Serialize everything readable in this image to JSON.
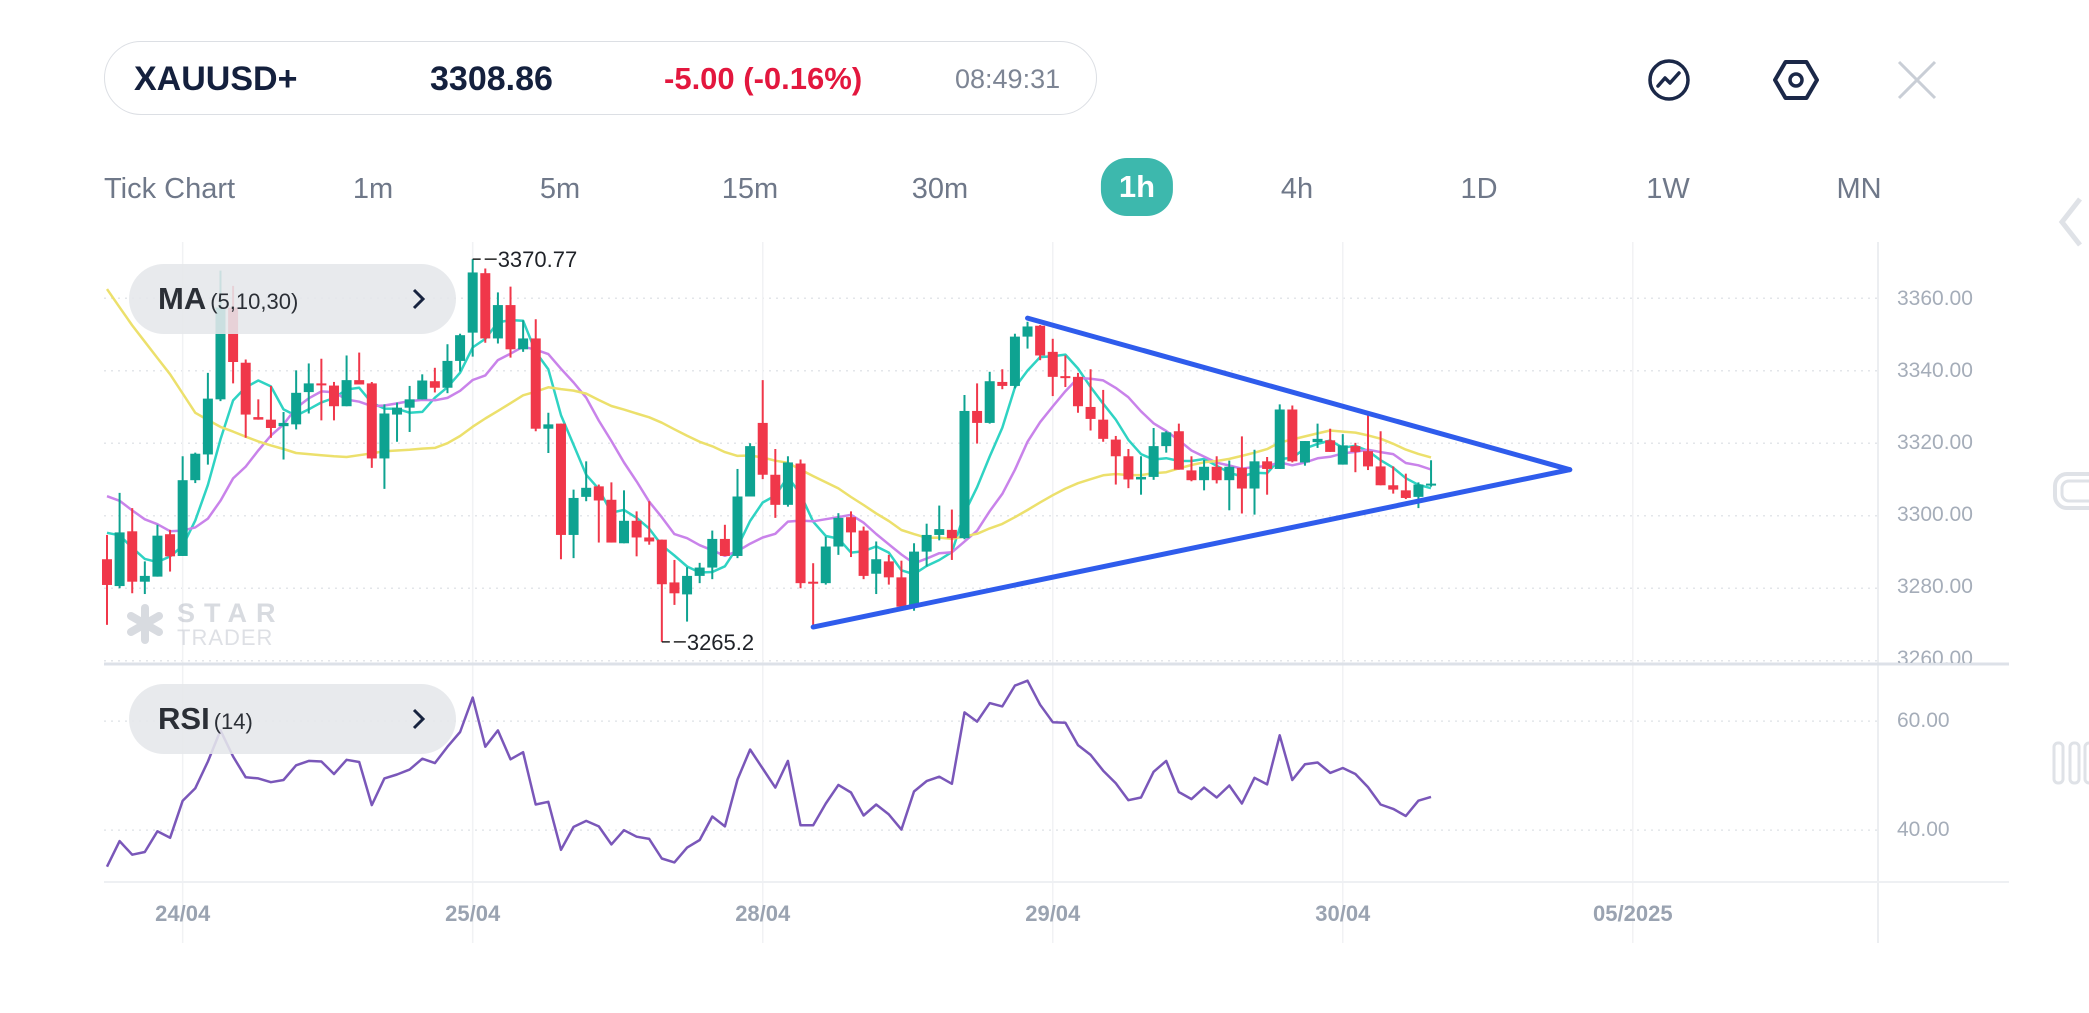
{
  "header": {
    "symbol": "XAUUSD+",
    "price": "3308.86",
    "change": "-5.00 (-0.16%)",
    "time": "08:49:31",
    "icons": [
      "trend-chart-icon",
      "settings-hexagon-icon",
      "close-icon"
    ]
  },
  "timeframes": [
    {
      "label": "Tick Chart"
    },
    {
      "label": "1m"
    },
    {
      "label": "5m"
    },
    {
      "label": "15m"
    },
    {
      "label": "30m"
    },
    {
      "label": "1h",
      "active": true
    },
    {
      "label": "4h"
    },
    {
      "label": "1D"
    },
    {
      "label": "1W"
    },
    {
      "label": "MN"
    }
  ],
  "indicators": {
    "ma": {
      "name": "MA",
      "params": "(5,10,30)"
    },
    "rsi": {
      "name": "RSI",
      "params": "(14)"
    }
  },
  "watermark": {
    "line1": "STAR",
    "line2": "TRADER"
  },
  "colors": {
    "up": "#0ea391",
    "down": "#f0374a",
    "ma5": "#2fd3c3",
    "ma10": "#c983ea",
    "ma30": "#ece06c",
    "trendline": "#2f5cec",
    "rsi": "#7a57b9",
    "negative_change": "#e3173e",
    "active_tab": "#3db8ad"
  },
  "chart_data": [
    {
      "type": "candlestick",
      "timeframe": "1h",
      "y_ticks": [
        "3360.00",
        "3340.00",
        "3320.00",
        "3300.00",
        "3280.00",
        "3260.00"
      ],
      "y_tick_values": [
        3360,
        3340,
        3320,
        3300,
        3280,
        3260
      ],
      "ylim": [
        3259.1,
        3375.5
      ],
      "x_ticks": [
        {
          "label": "24/04",
          "bar": 7
        },
        {
          "label": "25/04",
          "bar": 30
        },
        {
          "label": "28/04",
          "bar": 53
        },
        {
          "label": "29/04",
          "bar": 76
        },
        {
          "label": "30/04",
          "bar": 99
        },
        {
          "label": "05/2025",
          "bar": 122
        }
      ],
      "grid": true,
      "annotations": [
        {
          "label": "3370.77",
          "bar": 30,
          "value": 3370.77,
          "kind": "high"
        },
        {
          "label": "3265.2",
          "bar": 45,
          "value": 3265.2,
          "kind": "low"
        }
      ],
      "ohlc": [
        [
          3288.0,
          3294.7,
          3269.9,
          3280.9
        ],
        [
          3280.6,
          3306.3,
          3280.0,
          3295.4
        ],
        [
          3295.7,
          3302.1,
          3278.6,
          3281.8
        ],
        [
          3281.8,
          3287.4,
          3278.4,
          3283.4
        ],
        [
          3283.2,
          3297.5,
          3283.2,
          3294.5
        ],
        [
          3294.9,
          3296.1,
          3284.6,
          3288.8
        ],
        [
          3288.9,
          3316.4,
          3288.9,
          3309.8
        ],
        [
          3309.8,
          3317.4,
          3309.0,
          3317.1
        ],
        [
          3316.9,
          3339.4,
          3314.1,
          3332.3
        ],
        [
          3332.1,
          3367.6,
          3331.6,
          3357.4
        ],
        [
          3357.4,
          3363.4,
          3336.5,
          3342.4
        ],
        [
          3342.2,
          3343.1,
          3321.5,
          3327.9
        ],
        [
          3327.2,
          3332.1,
          3326.5,
          3326.5
        ],
        [
          3326.5,
          3335.8,
          3321.5,
          3324.2
        ],
        [
          3324.7,
          3328.6,
          3315.5,
          3325.6
        ],
        [
          3325.2,
          3340.1,
          3323.8,
          3333.9
        ],
        [
          3334.1,
          3342.0,
          3328.2,
          3336.5
        ],
        [
          3336.5,
          3343.3,
          3326.3,
          3336.1
        ],
        [
          3335.9,
          3336.9,
          3326.3,
          3330.2
        ],
        [
          3330.2,
          3344.2,
          3330.2,
          3337.4
        ],
        [
          3337.4,
          3345.0,
          3336.2,
          3336.2
        ],
        [
          3336.5,
          3336.9,
          3313.2,
          3315.8
        ],
        [
          3315.8,
          3330.7,
          3307.4,
          3328.2
        ],
        [
          3327.9,
          3331.2,
          3320.4,
          3329.8
        ],
        [
          3329.8,
          3335.8,
          3323.1,
          3332.1
        ],
        [
          3332.1,
          3339.0,
          3332.1,
          3337.3
        ],
        [
          3337.1,
          3340.8,
          3334.0,
          3335.3
        ],
        [
          3335.3,
          3347.3,
          3333.8,
          3342.7
        ],
        [
          3342.7,
          3350.2,
          3339.8,
          3349.8
        ],
        [
          3350.5,
          3370.77,
          3343.9,
          3367.1
        ],
        [
          3366.9,
          3368.2,
          3347.7,
          3348.9
        ],
        [
          3348.9,
          3361.6,
          3347.5,
          3358.1
        ],
        [
          3358.1,
          3363.2,
          3343.6,
          3345.9
        ],
        [
          3345.9,
          3353.9,
          3345.2,
          3348.9
        ],
        [
          3348.9,
          3354.2,
          3323.3,
          3324.0
        ],
        [
          3324.0,
          3328.4,
          3317.3,
          3325.2
        ],
        [
          3325.4,
          3325.4,
          3288.0,
          3294.7
        ],
        [
          3294.7,
          3307.2,
          3288.3,
          3304.9
        ],
        [
          3305.2,
          3315.0,
          3304.0,
          3307.7
        ],
        [
          3308.1,
          3308.6,
          3292.6,
          3304.2
        ],
        [
          3304.4,
          3309.2,
          3292.6,
          3292.6
        ],
        [
          3292.4,
          3307.0,
          3292.4,
          3298.6
        ],
        [
          3298.6,
          3301.2,
          3288.8,
          3294.0
        ],
        [
          3294.0,
          3304.0,
          3292.0,
          3292.9
        ],
        [
          3293.4,
          3293.4,
          3265.2,
          3281.1
        ],
        [
          3281.6,
          3287.8,
          3275.4,
          3278.6
        ],
        [
          3278.3,
          3285.8,
          3270.8,
          3283.4
        ],
        [
          3283.4,
          3287.0,
          3281.4,
          3285.7
        ],
        [
          3285.7,
          3295.9,
          3282.5,
          3293.6
        ],
        [
          3293.6,
          3297.5,
          3288.9,
          3288.9
        ],
        [
          3288.9,
          3312.9,
          3288.3,
          3305.3
        ],
        [
          3305.3,
          3320.0,
          3305.3,
          3319.2
        ],
        [
          3325.6,
          3337.4,
          3310.1,
          3311.3
        ],
        [
          3311.3,
          3318.4,
          3299.4,
          3303.0
        ],
        [
          3303.0,
          3316.4,
          3302.5,
          3314.7
        ],
        [
          3314.4,
          3315.5,
          3280.0,
          3281.4
        ],
        [
          3281.8,
          3286.9,
          3269.4,
          3281.4
        ],
        [
          3281.4,
          3294.2,
          3281.0,
          3291.5
        ],
        [
          3291.5,
          3300.7,
          3289.2,
          3299.4
        ],
        [
          3299.6,
          3301.2,
          3288.6,
          3295.4
        ],
        [
          3295.9,
          3297.0,
          3282.5,
          3283.4
        ],
        [
          3284.0,
          3292.9,
          3278.4,
          3288.0
        ],
        [
          3287.4,
          3289.2,
          3281.0,
          3283.0
        ],
        [
          3283.0,
          3287.6,
          3274.9,
          3274.9
        ],
        [
          3274.9,
          3292.4,
          3273.8,
          3290.1
        ],
        [
          3290.1,
          3297.8,
          3286.0,
          3294.7
        ],
        [
          3294.7,
          3302.8,
          3293.2,
          3296.3
        ],
        [
          3296.1,
          3301.7,
          3287.8,
          3293.8
        ],
        [
          3293.8,
          3333.3,
          3293.5,
          3328.9
        ],
        [
          3328.9,
          3336.5,
          3319.9,
          3325.6
        ],
        [
          3325.6,
          3339.7,
          3325.4,
          3337.1
        ],
        [
          3336.9,
          3340.4,
          3334.9,
          3335.8
        ],
        [
          3335.8,
          3350.2,
          3335.1,
          3349.4
        ],
        [
          3349.4,
          3353.5,
          3346.1,
          3352.2
        ],
        [
          3352.4,
          3352.6,
          3342.9,
          3344.2
        ],
        [
          3345.2,
          3348.8,
          3333.0,
          3338.3
        ],
        [
          3338.5,
          3344.2,
          3335.5,
          3338.1
        ],
        [
          3338.3,
          3339.4,
          3328.4,
          3330.2
        ],
        [
          3330.0,
          3340.4,
          3323.5,
          3326.7
        ],
        [
          3326.5,
          3334.7,
          3320.4,
          3321.2
        ],
        [
          3321.0,
          3322.0,
          3308.6,
          3316.4
        ],
        [
          3316.4,
          3318.4,
          3307.6,
          3310.0
        ],
        [
          3310.0,
          3316.4,
          3305.8,
          3310.7
        ],
        [
          3310.7,
          3324.2,
          3309.9,
          3319.2
        ],
        [
          3319.2,
          3323.3,
          3317.4,
          3323.0
        ],
        [
          3323.3,
          3325.4,
          3312.7,
          3312.7
        ],
        [
          3312.5,
          3316.4,
          3309.5,
          3309.8
        ],
        [
          3309.8,
          3315.4,
          3307.0,
          3313.5
        ],
        [
          3313.5,
          3316.4,
          3308.9,
          3309.8
        ],
        [
          3309.8,
          3315.2,
          3301.5,
          3313.5
        ],
        [
          3313.2,
          3321.9,
          3300.6,
          3307.5
        ],
        [
          3307.5,
          3318.2,
          3300.3,
          3315.0
        ],
        [
          3315.0,
          3316.2,
          3305.8,
          3312.9
        ],
        [
          3312.9,
          3330.7,
          3312.9,
          3329.3
        ],
        [
          3329.3,
          3330.4,
          3314.7,
          3315.0
        ],
        [
          3314.7,
          3320.6,
          3313.8,
          3320.6
        ],
        [
          3320.3,
          3325.4,
          3318.7,
          3321.2
        ],
        [
          3320.8,
          3324.0,
          3317.6,
          3317.6
        ],
        [
          3314.1,
          3322.5,
          3314.1,
          3319.4
        ],
        [
          3319.2,
          3320.1,
          3312.0,
          3317.6
        ],
        [
          3317.8,
          3328.6,
          3312.6,
          3313.6
        ],
        [
          3313.6,
          3323.3,
          3308.4,
          3308.4
        ],
        [
          3308.4,
          3313.6,
          3306.1,
          3307.2
        ],
        [
          3307.0,
          3311.6,
          3304.6,
          3304.9
        ],
        [
          3305.2,
          3309.2,
          3302.1,
          3308.6
        ],
        [
          3308.6,
          3315.3,
          3308.0,
          3308.86
        ]
      ],
      "moving_averages": [
        {
          "period": 5,
          "start_value": 3298.9
        },
        {
          "period": 10,
          "start_value": 3308.1
        },
        {
          "period": 30,
          "leading_values": [
            3362.5,
            3357.5,
            3352.5,
            3348,
            3343.5,
            3339,
            3333.7,
            3328.4,
            3326.4,
            3324.5,
            3323.2,
            3321.8,
            3320.5,
            3319.4,
            3318.4,
            3317.3,
            3317,
            3316.7,
            3316.4,
            3316.2,
            3316.7,
            3317.2,
            3317.8,
            3318,
            3318.2,
            3318.5,
            3318.7,
            3320,
            3322
          ]
        }
      ],
      "trendlines": [
        {
          "from": {
            "bar": 74,
            "value": 3354.5
          },
          "to": {
            "bar": 117,
            "value": 3312.7
          }
        },
        {
          "from": {
            "bar": 57,
            "value": 3269.3
          },
          "to": {
            "bar": 117,
            "value": 3312.7
          }
        }
      ]
    },
    {
      "type": "line",
      "name": "RSI (14)",
      "y_ticks": [
        "60.00",
        "40.00"
      ],
      "y_tick_values": [
        60,
        40
      ],
      "ylim": [
        30.5,
        70.1
      ],
      "values": [
        33.3,
        38.0,
        35.5,
        36.0,
        39.8,
        38.6,
        45.4,
        47.7,
        52.6,
        58.3,
        53.5,
        49.7,
        49.5,
        48.8,
        49.2,
        51.9,
        52.7,
        52.6,
        50.3,
        52.9,
        52.5,
        44.6,
        49.5,
        50.2,
        51.1,
        53.1,
        52.3,
        55.3,
        58.0,
        64.3,
        55.3,
        58.3,
        53.0,
        54.3,
        44.7,
        45.2,
        36.4,
        40.6,
        41.7,
        40.7,
        37.4,
        40.0,
        38.8,
        38.4,
        34.8,
        34.1,
        36.8,
        38.2,
        42.5,
        40.7,
        49.3,
        54.8,
        51.3,
        47.8,
        52.7,
        40.9,
        40.9,
        44.9,
        48.3,
        46.9,
        42.7,
        44.7,
        42.9,
        40.1,
        47.1,
        49.0,
        49.8,
        48.5,
        61.6,
        59.9,
        63.3,
        62.7,
        66.5,
        67.4,
        63.0,
        59.8,
        59.7,
        55.6,
        53.8,
        50.9,
        48.6,
        45.5,
        46.0,
        50.7,
        52.7,
        47.0,
        45.7,
        47.8,
        46.0,
        48.2,
        44.9,
        49.6,
        48.4,
        57.4,
        49.2,
        52.1,
        52.4,
        50.5,
        51.4,
        50.3,
        47.9,
        44.7,
        43.9,
        42.6,
        45.4,
        46.1
      ]
    }
  ]
}
